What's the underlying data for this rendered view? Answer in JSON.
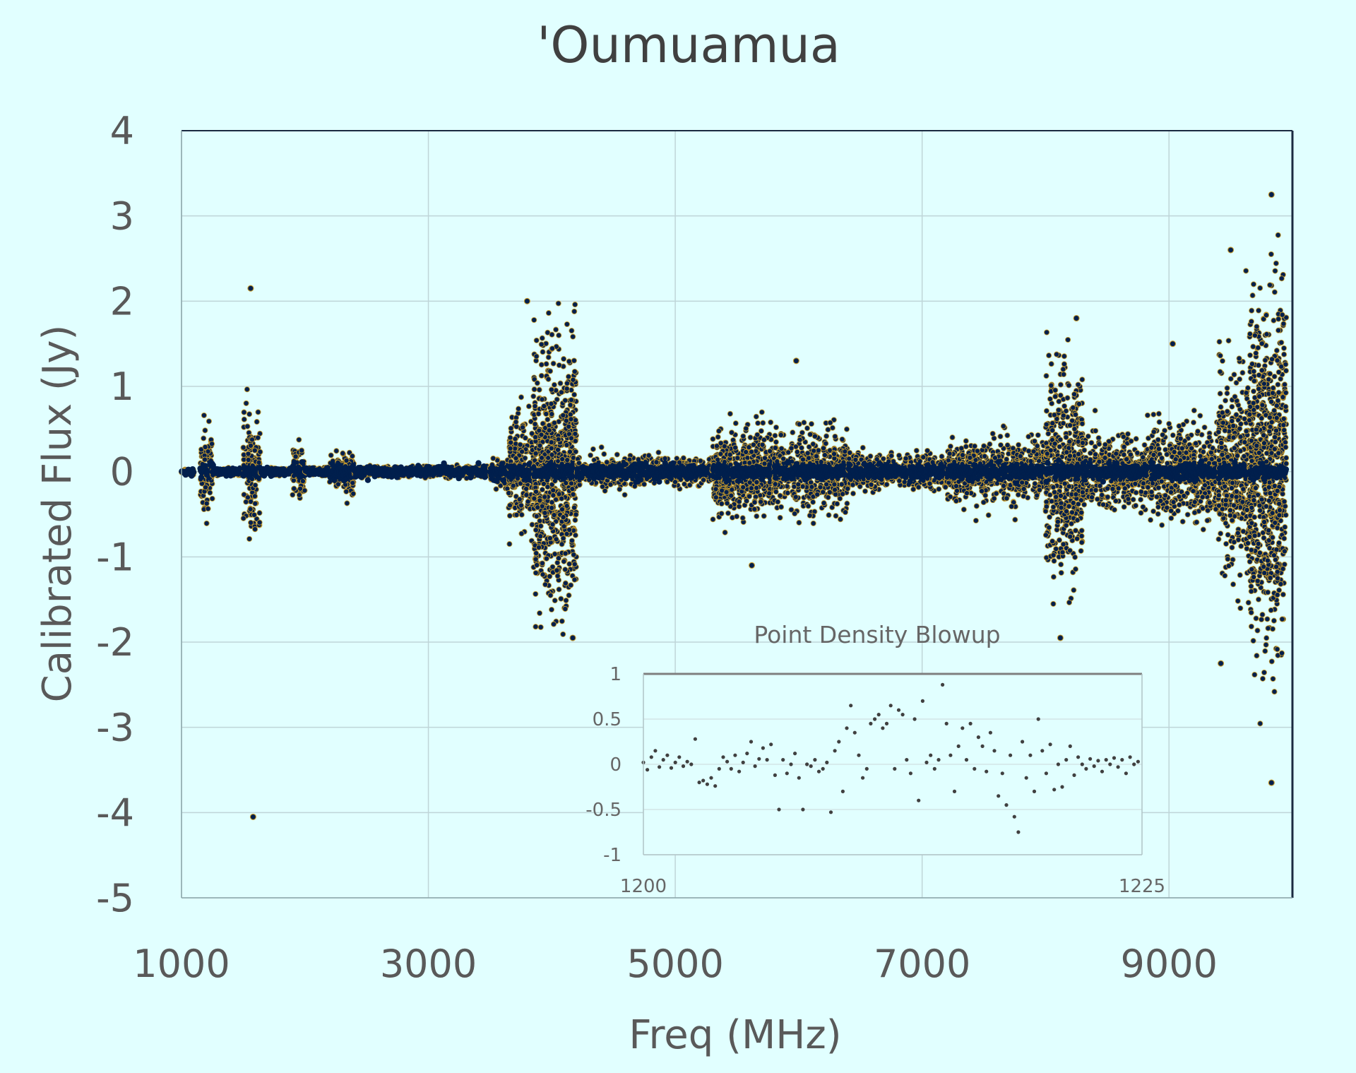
{
  "chart_data": [
    {
      "type": "scatter",
      "title": "'Oumuamua",
      "xlabel": "Freq (MHz)",
      "ylabel": "Calibrated Flux (Jy)",
      "xlim": [
        1000,
        10000
      ],
      "ylim": [
        -5,
        4
      ],
      "x_ticks": [
        "1000",
        "3000",
        "5000",
        "7000",
        "9000"
      ],
      "y_ticks": [
        "4",
        "3",
        "2",
        "1",
        "0",
        "-1",
        "-2",
        "-3",
        "-4",
        "-5"
      ],
      "grid": true,
      "marker_color": "#001f4d",
      "marker_edge_color": "#c89a2b",
      "bands": [
        {
          "x_start": 1000,
          "x_end": 1100,
          "spread": 0.02,
          "min": -0.05,
          "max": 0.05
        },
        {
          "x_start": 1150,
          "x_end": 1250,
          "spread": 0.25,
          "min": -0.8,
          "max": 1.3
        },
        {
          "x_start": 1250,
          "x_end": 1500,
          "spread": 0.02,
          "min": -0.05,
          "max": 0.05
        },
        {
          "x_start": 1500,
          "x_end": 1640,
          "spread": 0.3,
          "min": -1.8,
          "max": 2.15
        },
        {
          "x_start": 1640,
          "x_end": 1900,
          "spread": 0.02,
          "min": -0.05,
          "max": 0.05
        },
        {
          "x_start": 1900,
          "x_end": 2000,
          "spread": 0.15,
          "min": -0.55,
          "max": 0.4
        },
        {
          "x_start": 2000,
          "x_end": 2200,
          "spread": 0.02,
          "min": -0.05,
          "max": 0.05
        },
        {
          "x_start": 2200,
          "x_end": 2400,
          "spread": 0.13,
          "min": -0.45,
          "max": 0.65
        },
        {
          "x_start": 2400,
          "x_end": 3500,
          "spread": 0.03,
          "min": -0.08,
          "max": 0.08
        },
        {
          "x_start": 3500,
          "x_end": 3650,
          "spread": 0.08,
          "min": -0.3,
          "max": 0.3
        },
        {
          "x_start": 3650,
          "x_end": 3850,
          "spread": 0.35,
          "min": -1.5,
          "max": 1.5
        },
        {
          "x_start": 3850,
          "x_end": 4200,
          "spread": 0.75,
          "min": -1.95,
          "max": 2.0
        },
        {
          "x_start": 4200,
          "x_end": 5300,
          "spread": 0.08,
          "min": -0.35,
          "max": 0.35
        },
        {
          "x_start": 5300,
          "x_end": 5800,
          "spread": 0.25,
          "min": -1.1,
          "max": 0.95
        },
        {
          "x_start": 5800,
          "x_end": 6400,
          "spread": 0.22,
          "min": -0.9,
          "max": 1.3
        },
        {
          "x_start": 6400,
          "x_end": 7200,
          "spread": 0.1,
          "min": -0.6,
          "max": 0.7
        },
        {
          "x_start": 7200,
          "x_end": 8000,
          "spread": 0.17,
          "min": -0.7,
          "max": 0.75
        },
        {
          "x_start": 8000,
          "x_end": 8300,
          "spread": 0.55,
          "min": -1.9,
          "max": 1.8
        },
        {
          "x_start": 8300,
          "x_end": 8850,
          "spread": 0.2,
          "min": -0.6,
          "max": 0.85
        },
        {
          "x_start": 8850,
          "x_end": 9400,
          "spread": 0.25,
          "min": -0.9,
          "max": 1.5
        },
        {
          "x_start": 9400,
          "x_end": 9650,
          "spread": 0.55,
          "min": -2.3,
          "max": 2.6
        },
        {
          "x_start": 9650,
          "x_end": 9950,
          "spread": 0.95,
          "min": -3.6,
          "max": 3.25
        }
      ],
      "outliers": [
        {
          "x": 1580,
          "y": -4.05
        },
        {
          "x": 1560,
          "y": 2.15
        },
        {
          "x": 9830,
          "y": 3.25
        },
        {
          "x": 9830,
          "y": -3.65
        },
        {
          "x": 9420,
          "y": -2.25
        },
        {
          "x": 8120,
          "y": -1.95
        },
        {
          "x": 8250,
          "y": 1.8
        },
        {
          "x": 5980,
          "y": 1.3
        },
        {
          "x": 4170,
          "y": -1.95
        },
        {
          "x": 3800,
          "y": 2.0
        },
        {
          "x": 9030,
          "y": 1.5
        },
        {
          "x": 9500,
          "y": 2.6
        },
        {
          "x": 5620,
          "y": -1.1
        }
      ]
    },
    {
      "type": "scatter",
      "title": "Point Density Blowup",
      "xlim": [
        1200,
        1225
      ],
      "ylim": [
        -1,
        1
      ],
      "x_ticks": [
        "1200",
        "1225"
      ],
      "y_ticks": [
        "1",
        "0.5",
        "0",
        "-0.5",
        "-1"
      ],
      "grid": true,
      "marker_color": "#404040",
      "points": [
        [
          1200.0,
          0.02
        ],
        [
          1200.2,
          -0.06
        ],
        [
          1200.4,
          0.08
        ],
        [
          1200.6,
          0.15
        ],
        [
          1200.8,
          -0.03
        ],
        [
          1201.0,
          0.05
        ],
        [
          1201.2,
          0.1
        ],
        [
          1201.4,
          -0.04
        ],
        [
          1201.6,
          0.02
        ],
        [
          1201.8,
          0.08
        ],
        [
          1202.0,
          -0.02
        ],
        [
          1202.2,
          0.03
        ],
        [
          1202.4,
          0.0
        ],
        [
          1202.6,
          0.28
        ],
        [
          1202.8,
          -0.2
        ],
        [
          1203.0,
          -0.18
        ],
        [
          1203.2,
          -0.22
        ],
        [
          1203.4,
          -0.15
        ],
        [
          1203.6,
          -0.24
        ],
        [
          1203.8,
          -0.05
        ],
        [
          1204.0,
          0.08
        ],
        [
          1204.2,
          0.03
        ],
        [
          1204.4,
          -0.05
        ],
        [
          1204.6,
          0.1
        ],
        [
          1204.8,
          -0.08
        ],
        [
          1205.0,
          0.02
        ],
        [
          1205.2,
          0.12
        ],
        [
          1205.4,
          0.25
        ],
        [
          1205.6,
          -0.02
        ],
        [
          1205.8,
          0.06
        ],
        [
          1206.0,
          0.18
        ],
        [
          1206.2,
          0.05
        ],
        [
          1206.4,
          0.22
        ],
        [
          1206.6,
          -0.12
        ],
        [
          1206.8,
          -0.5
        ],
        [
          1207.0,
          0.05
        ],
        [
          1207.2,
          -0.1
        ],
        [
          1207.4,
          0.0
        ],
        [
          1207.6,
          0.12
        ],
        [
          1207.8,
          -0.15
        ],
        [
          1208.0,
          -0.5
        ],
        [
          1208.2,
          0.0
        ],
        [
          1208.4,
          -0.02
        ],
        [
          1208.6,
          0.05
        ],
        [
          1208.8,
          -0.08
        ],
        [
          1209.0,
          -0.05
        ],
        [
          1209.2,
          0.02
        ],
        [
          1209.4,
          -0.53
        ],
        [
          1209.6,
          0.15
        ],
        [
          1209.8,
          0.25
        ],
        [
          1210.0,
          -0.3
        ],
        [
          1210.2,
          0.4
        ],
        [
          1210.4,
          0.65
        ],
        [
          1210.6,
          0.35
        ],
        [
          1210.8,
          0.1
        ],
        [
          1211.0,
          -0.15
        ],
        [
          1211.2,
          -0.05
        ],
        [
          1211.4,
          0.45
        ],
        [
          1211.6,
          0.5
        ],
        [
          1211.8,
          0.55
        ],
        [
          1212.0,
          0.4
        ],
        [
          1212.2,
          0.45
        ],
        [
          1212.4,
          0.65
        ],
        [
          1212.6,
          -0.05
        ],
        [
          1212.8,
          0.6
        ],
        [
          1213.0,
          0.55
        ],
        [
          1213.2,
          0.05
        ],
        [
          1213.4,
          -0.1
        ],
        [
          1213.6,
          0.5
        ],
        [
          1213.8,
          -0.4
        ],
        [
          1214.0,
          0.7
        ],
        [
          1214.2,
          0.02
        ],
        [
          1214.4,
          0.1
        ],
        [
          1214.6,
          -0.05
        ],
        [
          1214.8,
          0.05
        ],
        [
          1215.0,
          0.88
        ],
        [
          1215.2,
          0.45
        ],
        [
          1215.4,
          0.1
        ],
        [
          1215.6,
          -0.3
        ],
        [
          1215.8,
          0.2
        ],
        [
          1216.0,
          0.4
        ],
        [
          1216.2,
          0.05
        ],
        [
          1216.4,
          0.45
        ],
        [
          1216.6,
          -0.05
        ],
        [
          1216.8,
          0.3
        ],
        [
          1217.0,
          0.2
        ],
        [
          1217.2,
          -0.08
        ],
        [
          1217.4,
          0.35
        ],
        [
          1217.6,
          0.15
        ],
        [
          1217.8,
          -0.35
        ],
        [
          1218.0,
          -0.1
        ],
        [
          1218.2,
          -0.45
        ],
        [
          1218.4,
          0.1
        ],
        [
          1218.6,
          -0.58
        ],
        [
          1218.8,
          -0.75
        ],
        [
          1219.0,
          0.25
        ],
        [
          1219.2,
          -0.15
        ],
        [
          1219.4,
          0.1
        ],
        [
          1219.6,
          -0.3
        ],
        [
          1219.8,
          0.5
        ],
        [
          1220.0,
          0.15
        ],
        [
          1220.2,
          -0.1
        ],
        [
          1220.4,
          0.22
        ],
        [
          1220.6,
          -0.28
        ],
        [
          1220.8,
          0.0
        ],
        [
          1221.0,
          -0.25
        ],
        [
          1221.2,
          0.05
        ],
        [
          1221.4,
          0.2
        ],
        [
          1221.6,
          -0.12
        ],
        [
          1221.8,
          0.08
        ],
        [
          1222.0,
          0.0
        ],
        [
          1222.2,
          -0.05
        ],
        [
          1222.4,
          0.06
        ],
        [
          1222.6,
          -0.02
        ],
        [
          1222.8,
          0.04
        ],
        [
          1223.0,
          -0.08
        ],
        [
          1223.2,
          0.05
        ],
        [
          1223.4,
          0.0
        ],
        [
          1223.6,
          0.07
        ],
        [
          1223.8,
          -0.03
        ],
        [
          1224.0,
          0.05
        ],
        [
          1224.2,
          -0.1
        ],
        [
          1224.4,
          0.08
        ],
        [
          1224.6,
          0.0
        ],
        [
          1224.8,
          0.03
        ]
      ]
    }
  ]
}
